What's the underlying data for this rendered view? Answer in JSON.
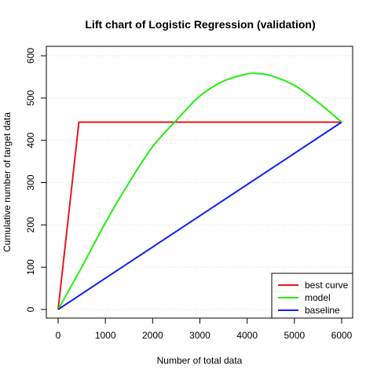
{
  "chart_data": {
    "type": "line",
    "title": "Lift chart of Logistic Regression (validation)",
    "xlabel": "Number of total data",
    "ylabel": "Cumulative number of target data",
    "xlim": [
      0,
      6000
    ],
    "ylim": [
      0,
      600
    ],
    "x_ticks": [
      0,
      1000,
      2000,
      3000,
      4000,
      5000,
      6000
    ],
    "y_ticks": [
      0,
      100,
      200,
      300,
      400,
      500,
      600
    ],
    "grid": "horizontal-dotted",
    "legend": "bottom-right",
    "series": [
      {
        "name": "best curve",
        "color": "#e31a1c",
        "x": [
          0,
          440,
          6000
        ],
        "y": [
          0,
          443,
          443
        ]
      },
      {
        "name": "model",
        "color": "#22ee11",
        "x": [
          0,
          500,
          1000,
          1500,
          2000,
          2500,
          3000,
          3500,
          4000,
          4200,
          4500,
          5000,
          5500,
          6000
        ],
        "y": [
          0,
          100,
          205,
          300,
          385,
          447,
          505,
          540,
          557,
          558,
          553,
          530,
          490,
          443
        ]
      },
      {
        "name": "baseline",
        "color": "#1020ee",
        "x": [
          0,
          6000
        ],
        "y": [
          0,
          443
        ]
      }
    ]
  }
}
